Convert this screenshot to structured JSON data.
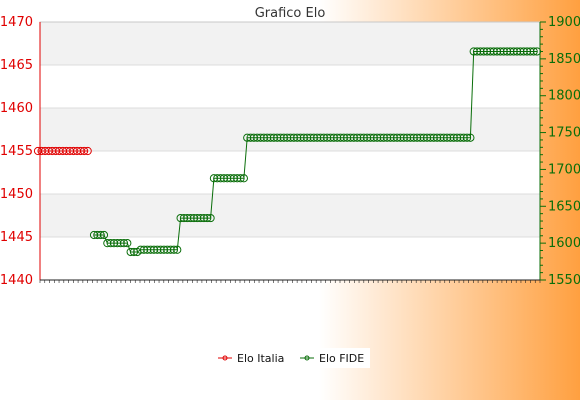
{
  "chart_data": {
    "type": "line",
    "title": "Grafico Elo",
    "grid": true,
    "legend_position": "bottom-center",
    "colors": {
      "background_left": "#ffffff",
      "background_right": "#ffa040",
      "plot_band": "#f2f2f2",
      "italia": "#e00000",
      "fide": "#0a6e0a",
      "left_axis": "#e00000",
      "right_axis": "#0a6e0a"
    },
    "y_left": {
      "min": 1440,
      "max": 1470,
      "ticks": [
        1440,
        1445,
        1450,
        1455,
        1460,
        1465,
        1470
      ]
    },
    "y_right": {
      "min": 1550,
      "max": 1900,
      "ticks": [
        1550,
        1600,
        1650,
        1700,
        1750,
        1800,
        1850,
        1900
      ]
    },
    "series": [
      {
        "name": "Elo Italia",
        "axis": "left",
        "values": [
          1455,
          1455,
          1455,
          1455,
          1455,
          1455,
          1455,
          1455,
          1455,
          1455,
          1455,
          1455,
          1455,
          1455,
          1455
        ]
      },
      {
        "name": "Elo FIDE",
        "axis": "right",
        "values": [
          1611,
          1611,
          1611,
          1611,
          1600,
          1600,
          1600,
          1600,
          1600,
          1600,
          1600,
          1588,
          1588,
          1588,
          1591,
          1591,
          1591,
          1591,
          1591,
          1591,
          1591,
          1591,
          1591,
          1591,
          1591,
          1591,
          1634,
          1634,
          1634,
          1634,
          1634,
          1634,
          1634,
          1634,
          1634,
          1634,
          1688,
          1688,
          1688,
          1688,
          1688,
          1688,
          1688,
          1688,
          1688,
          1688,
          1743,
          1743,
          1743,
          1743,
          1743,
          1743,
          1743,
          1743,
          1743,
          1743,
          1743,
          1743,
          1743,
          1743,
          1743,
          1743,
          1743,
          1743,
          1743,
          1743,
          1743,
          1743,
          1743,
          1743,
          1743,
          1743,
          1743,
          1743,
          1743,
          1743,
          1743,
          1743,
          1743,
          1743,
          1743,
          1743,
          1743,
          1743,
          1743,
          1743,
          1743,
          1743,
          1743,
          1743,
          1743,
          1743,
          1743,
          1743,
          1743,
          1743,
          1743,
          1743,
          1743,
          1743,
          1743,
          1743,
          1743,
          1743,
          1743,
          1743,
          1743,
          1743,
          1743,
          1743,
          1743,
          1743,
          1743,
          1743,
          1860,
          1860,
          1860,
          1860,
          1860,
          1860,
          1860,
          1860,
          1860,
          1860,
          1860,
          1860,
          1860,
          1860,
          1860,
          1860,
          1860,
          1860,
          1860,
          1860
        ]
      }
    ]
  }
}
